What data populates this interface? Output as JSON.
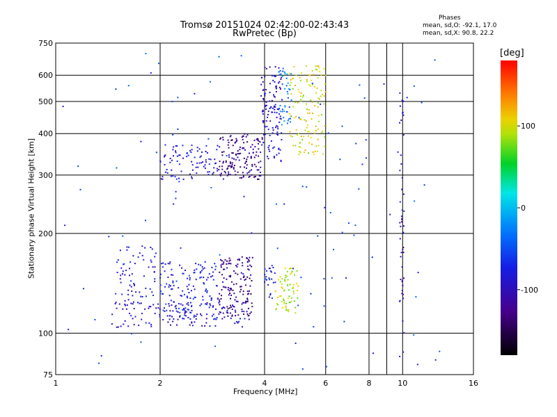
{
  "chart_data": {
    "type": "scatter",
    "title": "Tromsø 20151024 02:42:00-02:43:43",
    "subtitle": "RwPretec (Bp)",
    "xlabel": "Frequency [MHz]",
    "ylabel": "Stationary phase Virtual Height [km]",
    "x_scale": "log",
    "y_scale": "log",
    "xlim": [
      1,
      16
    ],
    "ylim": [
      75,
      750
    ],
    "x_ticks": [
      1,
      2,
      4,
      6,
      8,
      10,
      16
    ],
    "x_tick_labels": [
      "1",
      "2",
      "4",
      "6",
      "8",
      "10",
      "16"
    ],
    "x_gridlines": [
      2,
      4,
      6,
      8,
      9,
      10
    ],
    "y_ticks": [
      75,
      100,
      200,
      300,
      400,
      500,
      600,
      750
    ],
    "y_tick_labels": [
      "75",
      "100",
      "200",
      "300",
      "400",
      "500",
      "600",
      "750"
    ],
    "y_gridlines": [
      100,
      200,
      300,
      400,
      500,
      600
    ],
    "grid": true,
    "phase_stats": {
      "heading": "Phases",
      "o_line": "mean, sd,O: -92.1, 17.0",
      "x_line": "mean, sd,X:  90.8, 22.2"
    },
    "colorbar": {
      "unit": "[deg]",
      "range": [
        -180,
        180
      ],
      "tick_values": [
        100,
        0,
        -100
      ],
      "tick_labels": [
        "100",
        "0",
        "-100"
      ],
      "placement": "right"
    },
    "clusters": [
      {
        "f_range": [
          1.45,
          3.7
        ],
        "h_range": [
          104,
          125
        ],
        "phase": -95,
        "count": 120
      },
      {
        "f_range": [
          1.5,
          1.95
        ],
        "h_range": [
          120,
          185
        ],
        "phase": -85,
        "count": 70
      },
      {
        "f_range": [
          2.0,
          2.95
        ],
        "h_range": [
          110,
          165
        ],
        "phase": -75,
        "count": 150
      },
      {
        "f_range": [
          2.95,
          3.7
        ],
        "h_range": [
          112,
          170
        ],
        "phase": -125,
        "count": 140
      },
      {
        "f_range": [
          4.0,
          4.3
        ],
        "h_range": [
          125,
          160
        ],
        "phase": -80,
        "count": 25
      },
      {
        "f_range": [
          4.3,
          5.0
        ],
        "h_range": [
          115,
          160
        ],
        "phase": 90,
        "count": 70
      },
      {
        "f_range": [
          2.0,
          2.95
        ],
        "h_range": [
          290,
          370
        ],
        "phase": -85,
        "count": 90
      },
      {
        "f_range": [
          2.95,
          3.9
        ],
        "h_range": [
          290,
          400
        ],
        "phase": -125,
        "count": 150
      },
      {
        "f_range": [
          3.9,
          4.5
        ],
        "h_range": [
          330,
          640
        ],
        "phase": -95,
        "count": 120
      },
      {
        "f_range": [
          4.4,
          4.8
        ],
        "h_range": [
          420,
          640
        ],
        "phase": -30,
        "count": 40
      },
      {
        "f_range": [
          4.7,
          6.0
        ],
        "h_range": [
          340,
          650
        ],
        "phase": 100,
        "count": 130
      },
      {
        "f_range": [
          9.8,
          10.1
        ],
        "h_range": [
          85,
          560
        ],
        "phase": -100,
        "count": 50
      },
      {
        "f_range": [
          1.0,
          13.0
        ],
        "h_range": [
          78,
          700
        ],
        "phase": -60,
        "count": 110
      }
    ]
  }
}
